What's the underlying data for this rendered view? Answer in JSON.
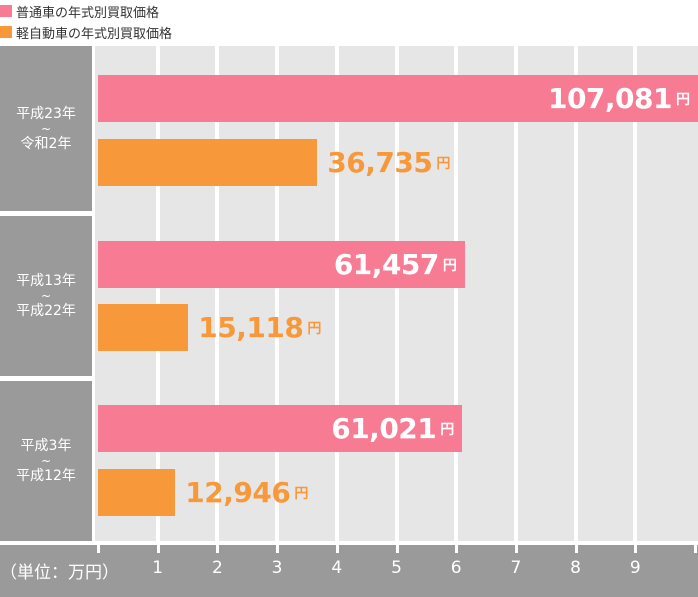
{
  "legend": {
    "items": [
      {
        "label": "普通車の年式別買取価格",
        "color": "#f77b93"
      },
      {
        "label": "軽自動車の年式別買取価格",
        "color": "#f7993a"
      }
    ]
  },
  "axis": {
    "unit_label": "（単位：万円）",
    "ticks": [
      "1",
      "2",
      "3",
      "4",
      "5",
      "6",
      "7",
      "8",
      "9"
    ]
  },
  "value_unit": "円",
  "chart_data": {
    "type": "bar",
    "orientation": "horizontal",
    "categories": [
      [
        "平成23年",
        "~",
        "令和2年"
      ],
      [
        "平成13年",
        "~",
        "平成22年"
      ],
      [
        "平成3年",
        "~",
        "平成12年"
      ]
    ],
    "series": [
      {
        "name": "普通車の年式別買取価格",
        "color": "#f77b93",
        "values": [
          107081,
          61457,
          61021
        ],
        "labels": [
          "107,081",
          "61,457",
          "61,021"
        ]
      },
      {
        "name": "軽自動車の年式別買取価格",
        "color": "#f7993a",
        "values": [
          36735,
          15118,
          12946
        ],
        "labels": [
          "36,735",
          "15,118",
          "12,946"
        ]
      }
    ],
    "xunit": "万円",
    "xlim": [
      0,
      10
    ],
    "grid": true
  }
}
